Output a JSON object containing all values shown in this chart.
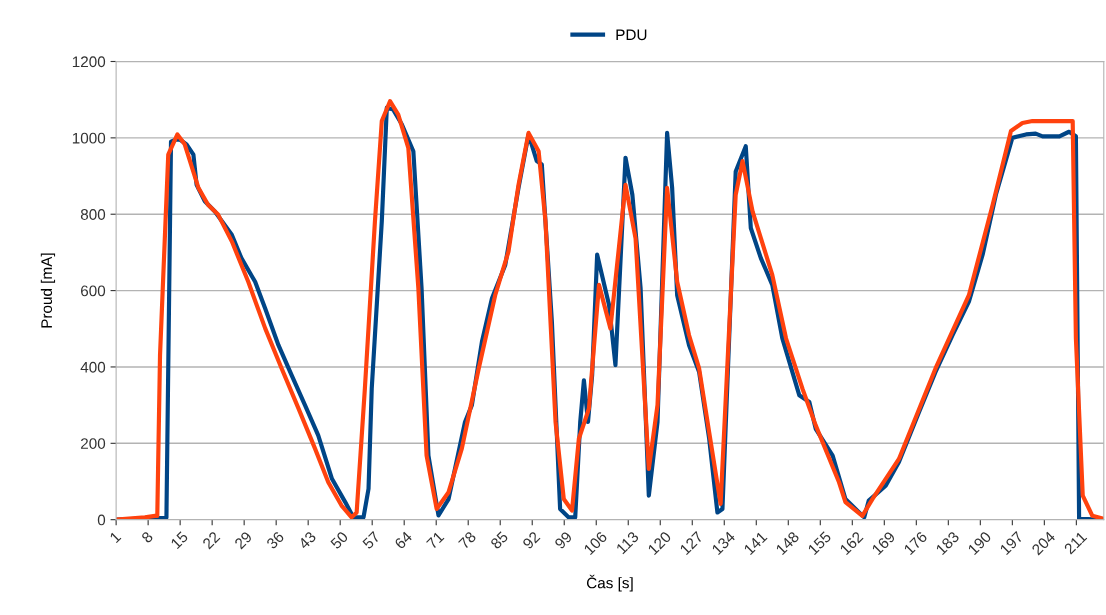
{
  "chart_data": {
    "type": "line",
    "xlabel": "Čas [s]",
    "ylabel": "Proud [mA]",
    "xlim": [
      1,
      217
    ],
    "xticks": [
      1,
      8,
      15,
      22,
      29,
      36,
      43,
      50,
      57,
      64,
      71,
      78,
      85,
      92,
      99,
      106,
      113,
      120,
      127,
      134,
      141,
      148,
      155,
      162,
      169,
      176,
      183,
      190,
      197,
      204,
      211
    ],
    "ylim": [
      0,
      1200
    ],
    "yticks": [
      0,
      200,
      400,
      600,
      800,
      1000,
      1200
    ],
    "grid": "y",
    "legend": "top",
    "marker": "none",
    "line_style": "solid",
    "series": [
      {
        "name": "PDU",
        "color": "#004586",
        "x": [
          1,
          12,
          13,
          14,
          15,
          16.4,
          17.9,
          18.6,
          20.4,
          22.6,
          26.3,
          28.4,
          31.4,
          33.6,
          36.5,
          39.4,
          42.3,
          45.2,
          48.2,
          51.1,
          52.9,
          55.1,
          56.2,
          56.9,
          59.1,
          60.2,
          61.6,
          63.5,
          66,
          67.8,
          69.3,
          71.5,
          73.7,
          77.3,
          78.8,
          81,
          83.2,
          86.1,
          89,
          91.2,
          93,
          94.1,
          96.3,
          98.1,
          100,
          101.4,
          102.5,
          103.3,
          104.2,
          105.1,
          106.2,
          108.8,
          110.2,
          112.4,
          113.9,
          115.7,
          117.5,
          119.4,
          121.5,
          122.6,
          123.7,
          126.3,
          128.5,
          130.7,
          132.5,
          133.6,
          136.5,
          138.7,
          139.8,
          142,
          144.5,
          146.7,
          150.4,
          152.6,
          154,
          157.7,
          160.5,
          164.6,
          165.6,
          169.3,
          172.2,
          176.6,
          180.2,
          183.9,
          187.5,
          190.5,
          193.4,
          197,
          200,
          202.1,
          203.6,
          207.3,
          209.4,
          210.9,
          211.6,
          217
        ],
        "values": [
          0,
          5,
          990,
          995,
          995,
          983,
          956,
          877,
          834,
          807,
          746,
          685,
          623,
          553,
          457,
          378,
          300,
          221,
          107,
          46,
          6,
          6,
          81,
          343,
          781,
          1079,
          1074,
          1035,
          965,
          606,
          168,
          11,
          54,
          256,
          300,
          466,
          580,
          667,
          869,
          1009,
          939,
          930,
          518,
          28,
          6,
          6,
          256,
          365,
          256,
          378,
          694,
          562,
          405,
          948,
          851,
          606,
          63,
          256,
          1013,
          869,
          588,
          457,
          387,
          212,
          19,
          28,
          912,
          978,
          764,
          685,
          615,
          475,
          326,
          308,
          238,
          168,
          54,
          6,
          50,
          89,
          151,
          282,
          387,
          483,
          571,
          694,
          851,
          1000,
          1009,
          1011,
          1004,
          1004,
          1016,
          1004,
          2,
          0
        ]
      },
      {
        "color": "#ff420e",
        "x": [
          1,
          7.3,
          9.5,
          10,
          10.6,
          12.4,
          14.4,
          16,
          19,
          21.1,
          23.3,
          26.3,
          29.9,
          33.6,
          37.2,
          40.9,
          44.5,
          47.4,
          50.3,
          52.5,
          53.6,
          55.4,
          57.6,
          59.1,
          60.9,
          62.7,
          64.9,
          67.1,
          68.9,
          71.1,
          73.7,
          76.6,
          80.3,
          83.9,
          86.8,
          89,
          91.2,
          93.4,
          94.9,
          97.1,
          98.9,
          100.7,
          102.2,
          104.4,
          106.6,
          109.1,
          112.4,
          114.6,
          117.5,
          119.4,
          121.5,
          123.7,
          126.3,
          128.5,
          130.7,
          133.2,
          136.5,
          138,
          140.2,
          144.5,
          147.5,
          151.1,
          154,
          159.1,
          160.5,
          164.2,
          166.4,
          172.2,
          180.2,
          187.5,
          192.7,
          196.7,
          199.2,
          201.4,
          210.2,
          210.9,
          212.4,
          214.5,
          217
        ],
        "values": [
          0,
          6,
          10,
          10,
          431,
          956,
          1009,
          983,
          869,
          825,
          799,
          729,
          623,
          501,
          396,
          291,
          186,
          98,
          37,
          6,
          19,
          343,
          781,
          1044,
          1096,
          1061,
          974,
          606,
          168,
          28,
          72,
          186,
          396,
          588,
          702,
          877,
          1013,
          965,
          781,
          256,
          54,
          24,
          212,
          291,
          615,
          501,
          877,
          737,
          133,
          300,
          869,
          623,
          483,
          396,
          229,
          41,
          851,
          939,
          807,
          641,
          475,
          343,
          247,
          98,
          46,
          10,
          54,
          159,
          396,
          588,
          825,
          1018,
          1039,
          1044,
          1044,
          475,
          63,
          10,
          2
        ]
      }
    ]
  }
}
